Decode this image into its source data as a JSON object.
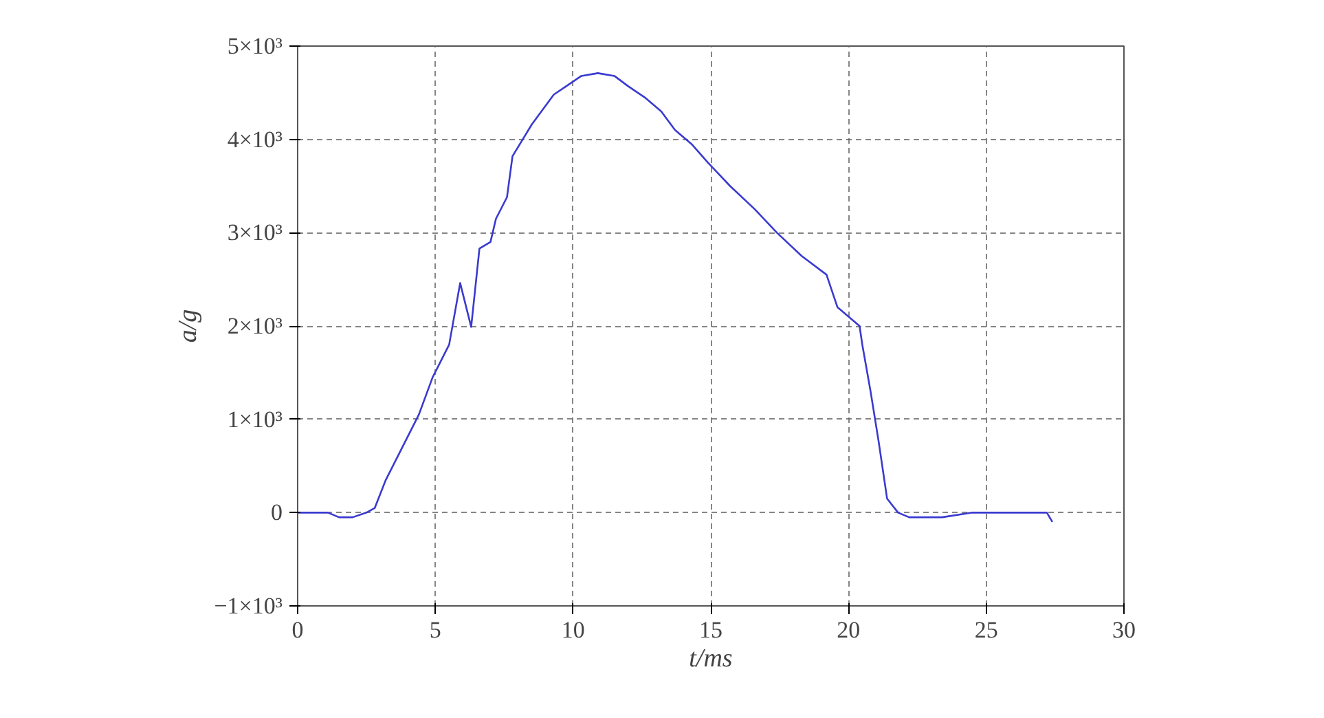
{
  "chart_data": {
    "type": "line",
    "xlabel": "t/ms",
    "ylabel": "a/g",
    "x": [
      0,
      0.7,
      1.1,
      1.5,
      2.0,
      2.5,
      2.8,
      3.2,
      3.8,
      4.4,
      4.9,
      5.5,
      5.9,
      6.3,
      6.6,
      7.0,
      7.2,
      7.6,
      7.8,
      8.5,
      9.3,
      9.75,
      10.3,
      10.9,
      11.5,
      12.0,
      12.6,
      13.2,
      13.7,
      14.3,
      14.9,
      15.7,
      16.6,
      17.4,
      18.3,
      19.2,
      19.6,
      20.4,
      20.5,
      20.8,
      21.1,
      21.4,
      21.8,
      22.2,
      22.6,
      23.4,
      24.5,
      26.8,
      27.2,
      27.4
    ],
    "series": [
      {
        "color": "#3a3ad0",
        "values": [
          0,
          0,
          0,
          -50,
          -50,
          0,
          50,
          350,
          700,
          1050,
          1450,
          1800,
          2460,
          1990,
          2830,
          2900,
          3150,
          3380,
          3820,
          4160,
          4480,
          4570,
          4680,
          4710,
          4680,
          4570,
          4450,
          4300,
          4100,
          3950,
          3750,
          3500,
          3250,
          3000,
          2750,
          2550,
          2200,
          2000,
          1800,
          1300,
          750,
          150,
          0,
          -50,
          -50,
          -50,
          0,
          0,
          0,
          -100
        ]
      }
    ],
    "xlim": [
      0,
      30
    ],
    "ylim": [
      -1000,
      5000
    ],
    "xticks": [
      0,
      5,
      10,
      15,
      20,
      25,
      30
    ],
    "yticks": [
      {
        "value": -1000,
        "label": "−1×10³"
      },
      {
        "value": 0,
        "label": "0"
      },
      {
        "value": 1000,
        "label": "1×10³"
      },
      {
        "value": 2000,
        "label": "2×10³"
      },
      {
        "value": 3000,
        "label": "3×10³"
      },
      {
        "value": 4000,
        "label": "4×10³"
      },
      {
        "value": 5000,
        "label": "5×10³"
      }
    ],
    "grid": true,
    "marker": "none",
    "line_style": "solid"
  }
}
